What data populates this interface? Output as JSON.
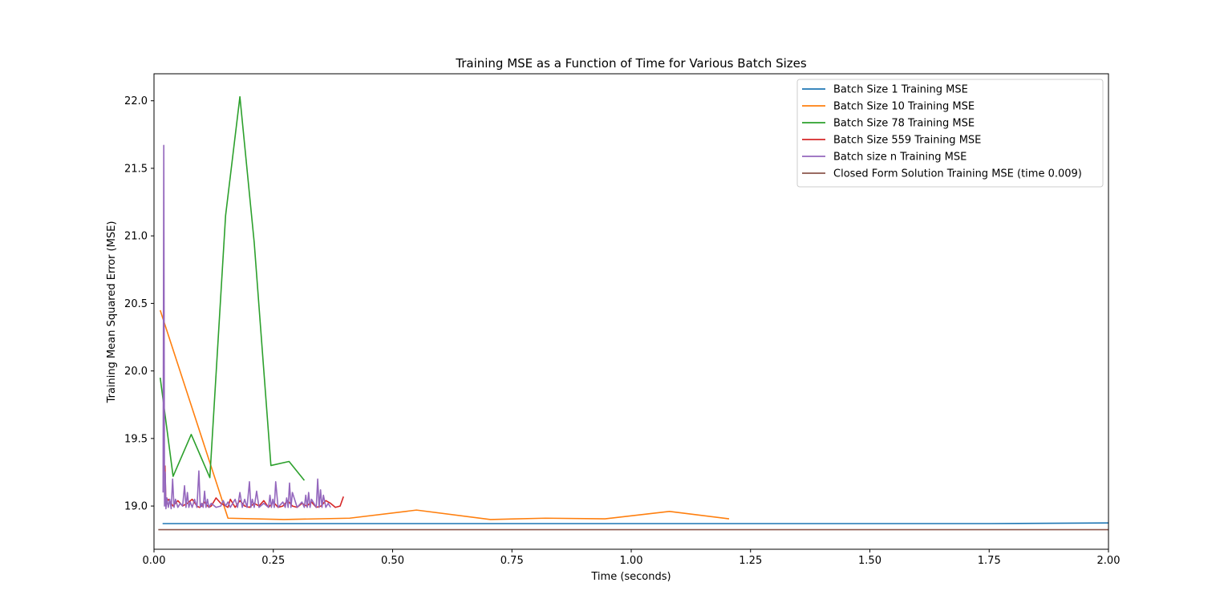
{
  "chart_data": {
    "type": "line",
    "title": "Training MSE as a Function of Time for Various Batch Sizes",
    "xlabel": "Time (seconds)",
    "ylabel": "Training Mean Squared Error (MSE)",
    "xlim": [
      0.0,
      2.0
    ],
    "ylim": [
      18.68,
      22.2
    ],
    "xticks": [
      0.0,
      0.25,
      0.5,
      0.75,
      1.0,
      1.25,
      1.5,
      1.75,
      2.0
    ],
    "xtick_labels": [
      "0.00",
      "0.25",
      "0.50",
      "0.75",
      "1.00",
      "1.25",
      "1.50",
      "1.75",
      "2.00"
    ],
    "yticks": [
      19.0,
      19.5,
      20.0,
      20.5,
      21.0,
      21.5,
      22.0
    ],
    "ytick_labels": [
      "19.0",
      "19.5",
      "20.0",
      "20.5",
      "21.0",
      "21.5",
      "22.0"
    ],
    "grid": false,
    "legend_position": "top-right",
    "series": [
      {
        "name": "Batch Size 1 Training MSE",
        "color": "#1f77b4",
        "x": [
          0.018,
          0.5,
          1.0,
          1.25,
          1.5,
          1.75,
          2.0
        ],
        "y": [
          18.87,
          18.87,
          18.87,
          18.87,
          18.87,
          18.87,
          18.875
        ]
      },
      {
        "name": "Batch Size 10 Training MSE",
        "color": "#ff7f0e",
        "x": [
          0.013,
          0.155,
          0.272,
          0.41,
          0.55,
          0.705,
          0.82,
          0.945,
          1.08,
          1.205
        ],
        "y": [
          20.45,
          18.91,
          18.9,
          18.91,
          18.97,
          18.9,
          18.91,
          18.905,
          18.96,
          18.905
        ]
      },
      {
        "name": "Batch Size 78 Training MSE",
        "color": "#2ca02c",
        "x": [
          0.013,
          0.04,
          0.078,
          0.117,
          0.15,
          0.18,
          0.21,
          0.245,
          0.283,
          0.315
        ],
        "y": [
          19.95,
          19.22,
          19.53,
          19.21,
          21.15,
          22.03,
          20.95,
          19.3,
          19.33,
          19.19
        ]
      },
      {
        "name": "Batch Size 559 Training MSE",
        "color": "#d62728",
        "x": [
          0.023,
          0.025,
          0.027,
          0.03,
          0.04,
          0.05,
          0.06,
          0.07,
          0.08,
          0.09,
          0.095,
          0.1,
          0.105,
          0.115,
          0.12,
          0.13,
          0.14,
          0.15,
          0.155,
          0.16,
          0.17,
          0.18,
          0.19,
          0.2,
          0.21,
          0.22,
          0.23,
          0.24,
          0.25,
          0.26,
          0.27,
          0.28,
          0.29,
          0.3,
          0.31,
          0.32,
          0.33,
          0.34,
          0.35,
          0.36,
          0.37,
          0.38,
          0.39,
          0.397
        ],
        "y": [
          19.3,
          19.0,
          19.03,
          19.05,
          19.0,
          19.04,
          19.0,
          19.02,
          19.05,
          19.0,
          18.99,
          19.0,
          19.03,
          18.99,
          19.0,
          19.06,
          19.02,
          19.0,
          18.99,
          19.05,
          18.99,
          19.04,
          19.0,
          18.99,
          19.02,
          19.0,
          19.04,
          18.99,
          19.03,
          18.99,
          19.0,
          19.04,
          19.0,
          18.99,
          19.02,
          19.0,
          19.03,
          18.99,
          19.0,
          19.04,
          19.02,
          18.99,
          19.0,
          19.07
        ]
      },
      {
        "name": "Batch size n Training MSE",
        "color": "#9467bd",
        "x": [
          0.019,
          0.0205,
          0.022,
          0.0235,
          0.025,
          0.027,
          0.03,
          0.033,
          0.036,
          0.039,
          0.042,
          0.045,
          0.05,
          0.055,
          0.06,
          0.064,
          0.067,
          0.07,
          0.073,
          0.076,
          0.08,
          0.085,
          0.09,
          0.094,
          0.097,
          0.1,
          0.103,
          0.106,
          0.109,
          0.112,
          0.115,
          0.12,
          0.13,
          0.14,
          0.145,
          0.15,
          0.155,
          0.16,
          0.17,
          0.175,
          0.18,
          0.185,
          0.19,
          0.195,
          0.2,
          0.203,
          0.206,
          0.21,
          0.215,
          0.22,
          0.23,
          0.24,
          0.243,
          0.246,
          0.249,
          0.252,
          0.255,
          0.26,
          0.27,
          0.275,
          0.278,
          0.281,
          0.284,
          0.287,
          0.29,
          0.3,
          0.31,
          0.315,
          0.318,
          0.321,
          0.324,
          0.327,
          0.33,
          0.34,
          0.343,
          0.346,
          0.349,
          0.352,
          0.355,
          0.36,
          0.365,
          0.37
        ],
        "y": [
          19.1,
          21.67,
          19.0,
          19.25,
          18.98,
          19.06,
          18.99,
          19.05,
          18.98,
          19.2,
          18.99,
          19.05,
          18.99,
          19.02,
          19.0,
          19.15,
          18.99,
          19.1,
          18.99,
          19.03,
          18.99,
          19.05,
          18.99,
          19.26,
          18.99,
          19.02,
          18.99,
          19.11,
          18.99,
          19.05,
          18.99,
          19.02,
          18.99,
          19.0,
          19.04,
          19.0,
          19.03,
          18.99,
          19.05,
          18.99,
          19.1,
          18.99,
          19.05,
          18.99,
          19.18,
          18.99,
          19.05,
          18.99,
          19.11,
          18.99,
          19.02,
          18.99,
          19.08,
          18.99,
          19.05,
          18.99,
          19.18,
          18.99,
          19.03,
          18.99,
          19.06,
          18.99,
          19.17,
          18.99,
          19.1,
          18.99,
          19.03,
          18.99,
          19.08,
          18.99,
          19.1,
          18.99,
          19.05,
          18.99,
          19.2,
          18.99,
          19.12,
          18.99,
          19.08,
          18.99,
          19.02,
          18.99
        ]
      },
      {
        "name": "Closed Form Solution Training MSE (time 0.009)",
        "color": "#8c564b",
        "x": [
          0.009,
          2.0
        ],
        "y": [
          18.825,
          18.825
        ]
      }
    ]
  }
}
